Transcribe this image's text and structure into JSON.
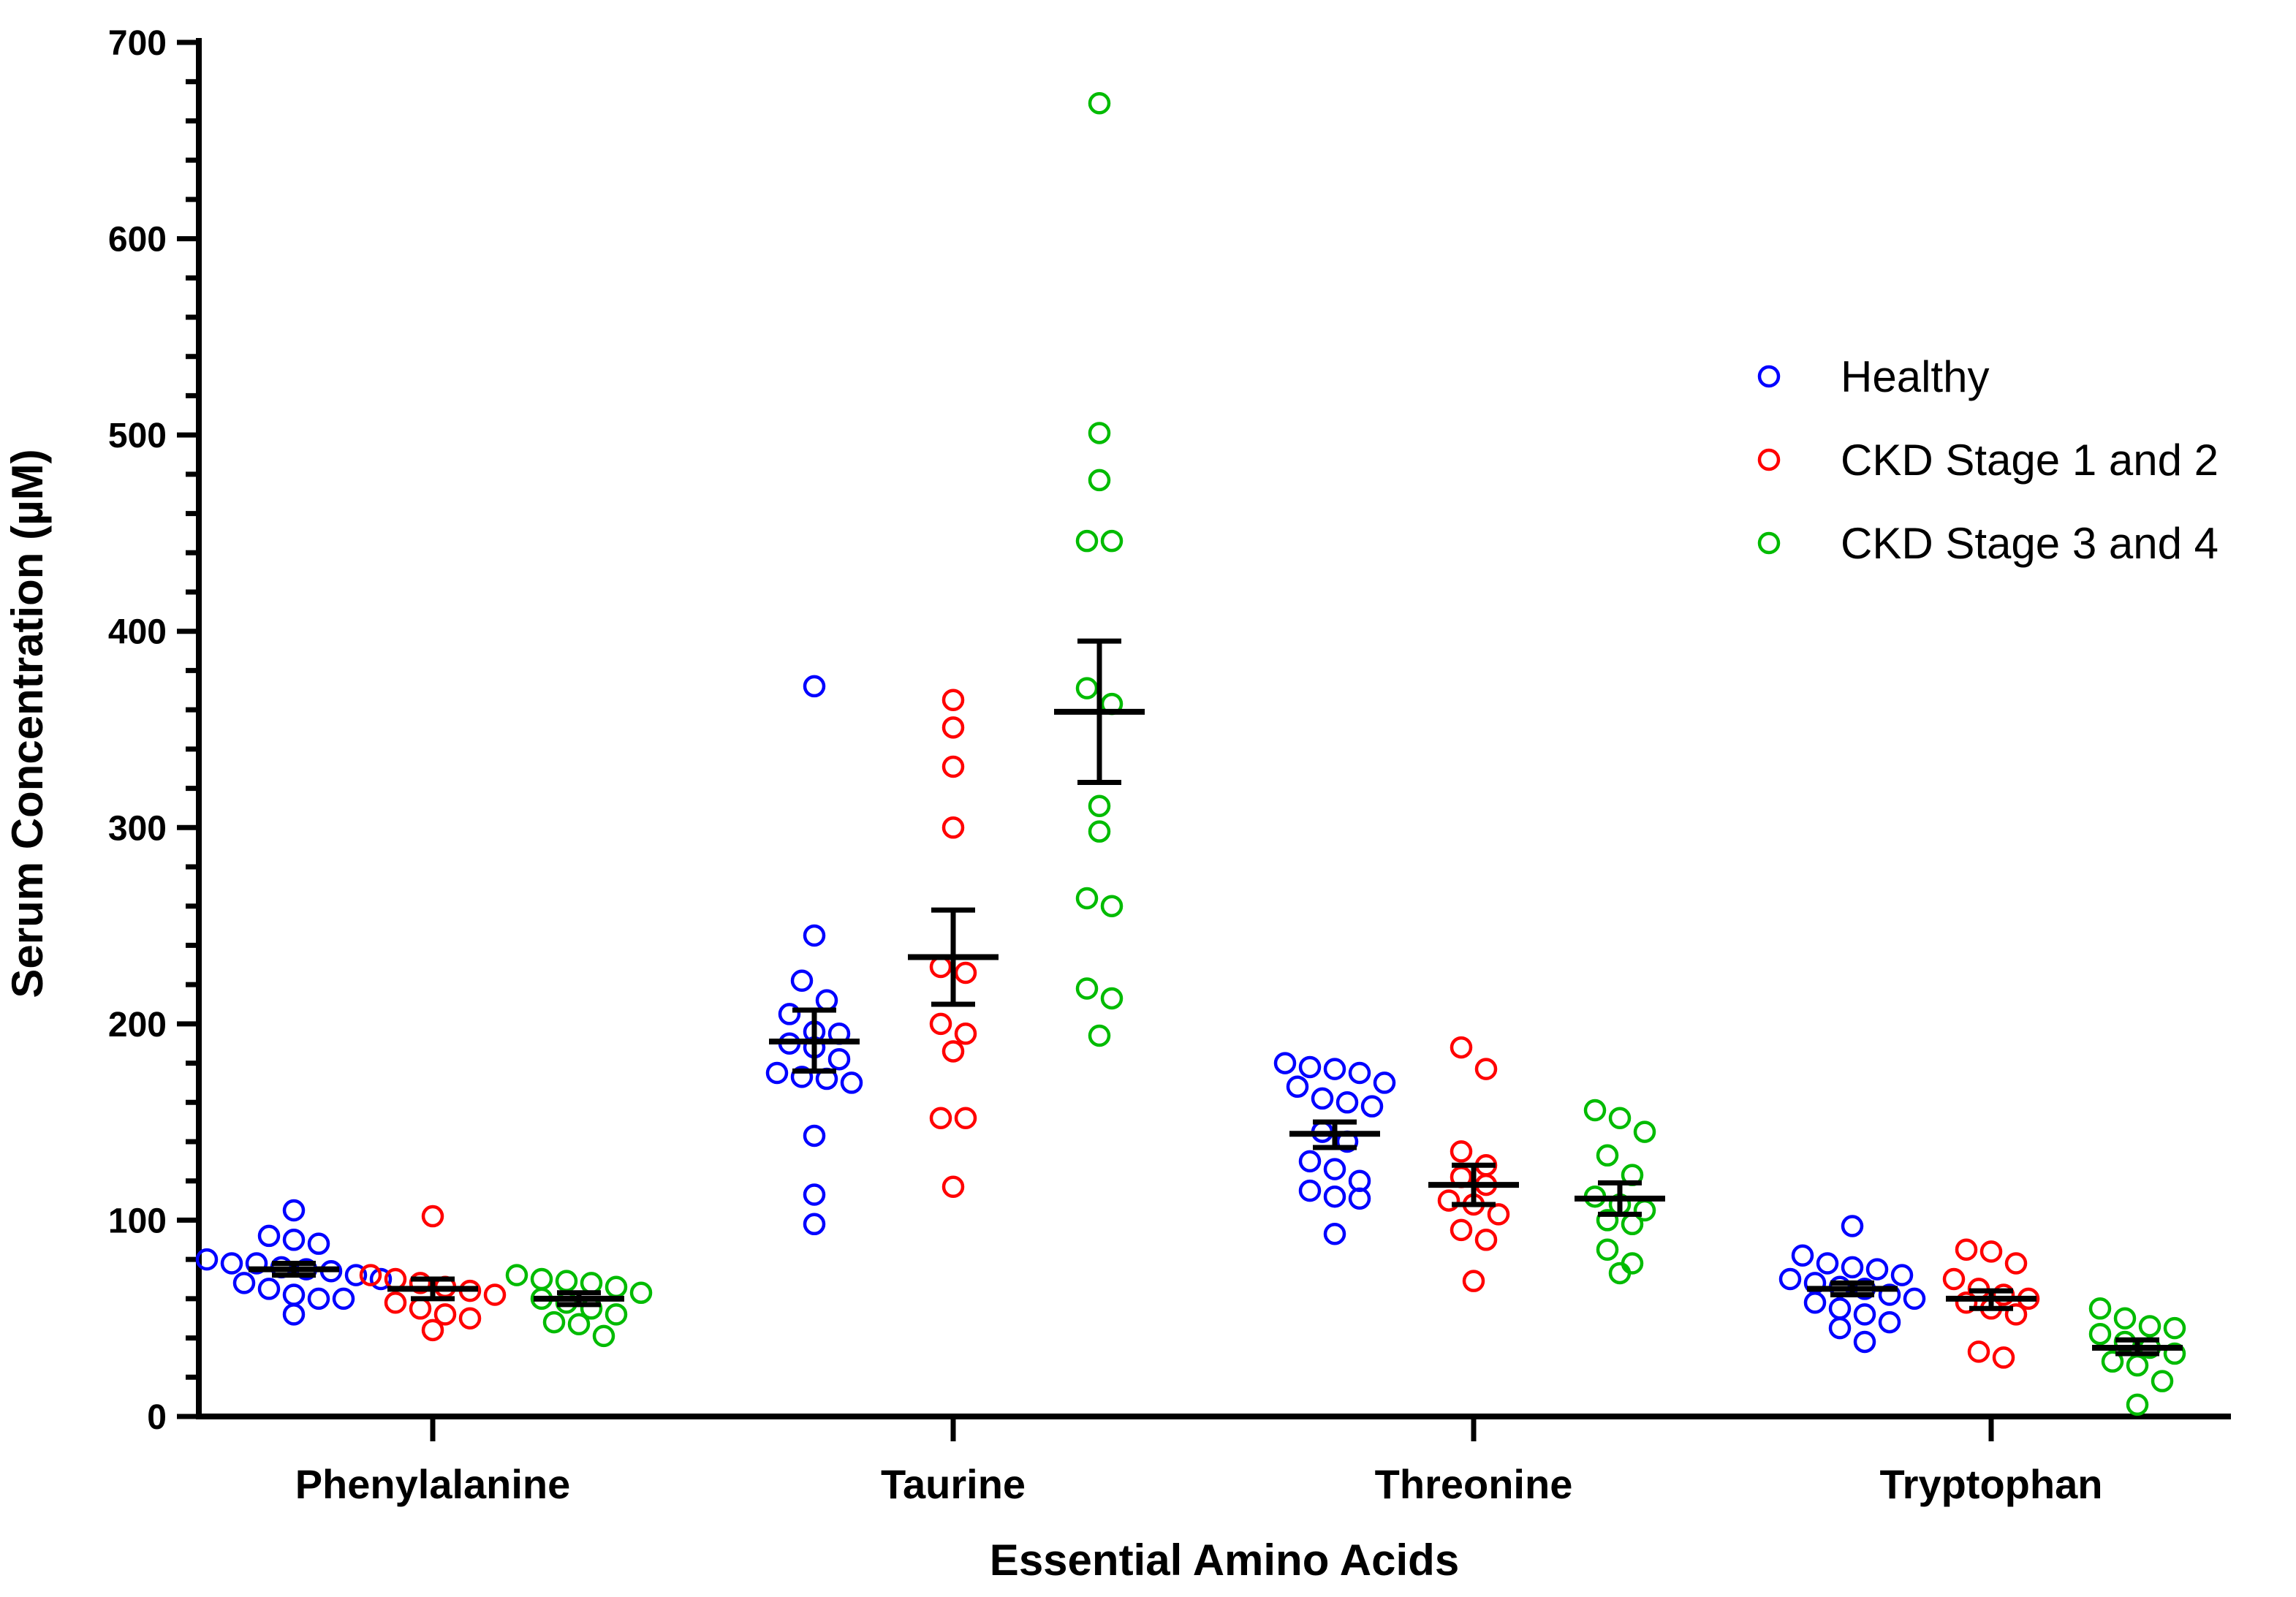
{
  "chart_data": {
    "type": "scatter",
    "title": "",
    "xlabel": "Essential Amino  Acids",
    "ylabel": "Serum  Concentration (µM)",
    "ylim": [
      0,
      700
    ],
    "yticks": [
      "0",
      "100",
      "200",
      "300",
      "400",
      "500",
      "600",
      "700"
    ],
    "categories": [
      "Phenylalanine",
      "Taurine",
      "Threonine",
      "Tryptophan"
    ],
    "legend_position": "top-right",
    "series": [
      {
        "name": "Healthy",
        "color": "#0000ff",
        "points": [
          [
            105,
            92,
            90,
            88,
            80,
            78,
            78,
            76,
            75,
            74,
            72,
            70,
            68,
            65,
            62,
            60,
            60,
            52
          ],
          [
            372,
            245,
            222,
            212,
            205,
            196,
            195,
            190,
            188,
            182,
            175,
            173,
            172,
            170,
            143,
            113,
            98
          ],
          [
            180,
            178,
            177,
            175,
            170,
            168,
            162,
            160,
            158,
            145,
            140,
            130,
            126,
            120,
            115,
            112,
            111,
            93
          ],
          [
            97,
            82,
            78,
            76,
            75,
            72,
            70,
            68,
            66,
            65,
            62,
            60,
            58,
            55,
            52,
            48,
            45,
            38
          ]
        ],
        "mean": [
          75,
          191,
          144,
          65
        ],
        "sem_low": [
          72,
          176,
          137,
          62
        ],
        "sem_high": [
          78,
          207,
          150,
          68
        ]
      },
      {
        "name": "CKD Stage 1 and 2",
        "color": "#ff0000",
        "points": [
          [
            102,
            72,
            70,
            68,
            66,
            64,
            62,
            58,
            55,
            52,
            50,
            44
          ],
          [
            365,
            351,
            331,
            300,
            229,
            226,
            200,
            195,
            186,
            152,
            152,
            117
          ],
          [
            188,
            177,
            135,
            128,
            122,
            118,
            110,
            108,
            103,
            95,
            90,
            69
          ],
          [
            85,
            84,
            78,
            70,
            65,
            62,
            60,
            58,
            55,
            52,
            33,
            30
          ]
        ],
        "mean": [
          65,
          234,
          118,
          60
        ],
        "sem_low": [
          60,
          210,
          108,
          55
        ],
        "sem_high": [
          70,
          258,
          128,
          64
        ]
      },
      {
        "name": "CKD Stage 3 and 4",
        "color": "#00bb00",
        "points": [
          [
            72,
            70,
            69,
            68,
            66,
            63,
            60,
            58,
            55,
            52,
            48,
            47,
            41
          ],
          [
            669,
            501,
            477,
            446,
            446,
            371,
            363,
            311,
            298,
            264,
            260,
            218,
            213,
            194
          ],
          [
            156,
            152,
            145,
            133,
            123,
            112,
            108,
            105,
            100,
            98,
            85,
            78,
            73
          ],
          [
            55,
            50,
            46,
            45,
            42,
            38,
            35,
            32,
            28,
            26,
            18,
            6
          ]
        ],
        "mean": [
          60,
          359,
          111,
          35
        ],
        "sem_low": [
          57,
          323,
          103,
          32
        ],
        "sem_high": [
          63,
          395,
          119,
          39
        ]
      }
    ]
  }
}
